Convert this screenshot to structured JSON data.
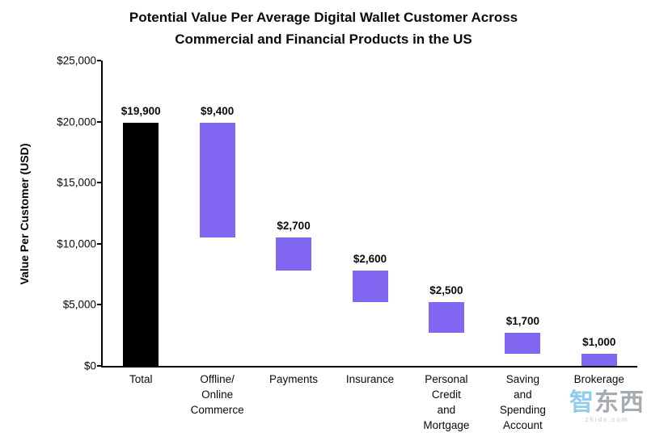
{
  "title": {
    "line1": "Potential Value Per Average Digital Wallet Customer Across",
    "line2": "Commercial and Financial Products in the US"
  },
  "watermark": {
    "text": "智东西",
    "subtext": "zhidx.com"
  },
  "chart_data": {
    "type": "bar",
    "subtype": "waterfall",
    "title": "Potential Value Per Average Digital Wallet Customer Across Commercial and Financial Products in the US",
    "xlabel": "",
    "ylabel": "Value Per Customer (USD)",
    "ylim": [
      0,
      25000
    ],
    "ytick_interval": 5000,
    "ytick_labels": [
      "$0",
      "$5,000",
      "$10,000",
      "$15,000",
      "$20,000",
      "$25,000"
    ],
    "grid": false,
    "legend": "none",
    "colors": {
      "total_bar": "#000000",
      "segment_bar": "#8066f0"
    },
    "categories": [
      "Total",
      "Offline/ Online Commerce",
      "Payments",
      "Insurance",
      "Personal Credit and Mortgage",
      "Saving and Spending Account",
      "Brokerage"
    ],
    "bars": [
      {
        "category": "Total",
        "label_lines": "Total",
        "value": 19900,
        "start": 0,
        "end": 19900,
        "data_label": "$19,900",
        "color": "#000000"
      },
      {
        "category": "Offline/ Online Commerce",
        "label_lines": "Offline/\nOnline\nCommerce",
        "value": 9400,
        "start": 10500,
        "end": 19900,
        "data_label": "$9,400",
        "color": "#8066f0"
      },
      {
        "category": "Payments",
        "label_lines": "Payments",
        "value": 2700,
        "start": 7800,
        "end": 10500,
        "data_label": "$2,700",
        "color": "#8066f0"
      },
      {
        "category": "Insurance",
        "label_lines": "Insurance",
        "value": 2600,
        "start": 5200,
        "end": 7800,
        "data_label": "$2,600",
        "color": "#8066f0"
      },
      {
        "category": "Personal Credit and Mortgage",
        "label_lines": "Personal\nCredit\nand\nMortgage",
        "value": 2500,
        "start": 2700,
        "end": 5200,
        "data_label": "$2,500",
        "color": "#8066f0"
      },
      {
        "category": "Saving and Spending Account",
        "label_lines": "Saving\nand\nSpending\nAccount",
        "value": 1700,
        "start": 1000,
        "end": 2700,
        "data_label": "$1,700",
        "color": "#8066f0"
      },
      {
        "category": "Brokerage",
        "label_lines": "Brokerage",
        "value": 1000,
        "start": 0,
        "end": 1000,
        "data_label": "$1,000",
        "color": "#8066f0"
      }
    ]
  }
}
